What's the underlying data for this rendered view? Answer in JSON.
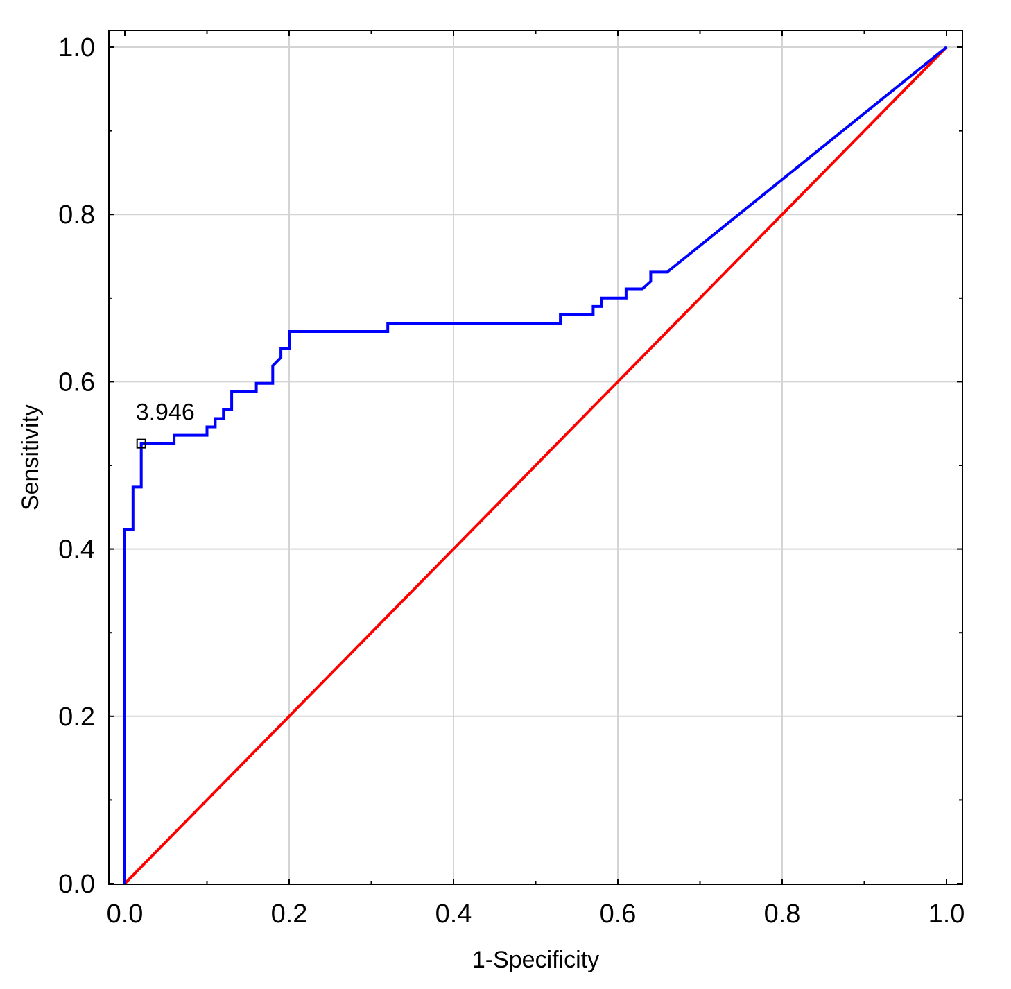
{
  "chart_data": {
    "type": "line",
    "xlabel": "1-Specificity",
    "ylabel": "Sensitivity",
    "xlim": [
      0.0,
      1.0
    ],
    "ylim": [
      0.0,
      1.0
    ],
    "grid": true,
    "x_ticks": [
      "0.0",
      "0.2",
      "0.4",
      "0.6",
      "0.8",
      "1.0"
    ],
    "y_ticks": [
      "0.0",
      "0.2",
      "0.4",
      "0.6",
      "0.8",
      "1.0"
    ],
    "series": [
      {
        "color": "#0000ff",
        "points": [
          [
            0.0,
            0.0
          ],
          [
            0.0,
            0.423
          ],
          [
            0.01,
            0.423
          ],
          [
            0.01,
            0.474
          ],
          [
            0.02,
            0.474
          ],
          [
            0.02,
            0.526
          ],
          [
            0.06,
            0.526
          ],
          [
            0.06,
            0.536
          ],
          [
            0.1,
            0.536
          ],
          [
            0.1,
            0.546
          ],
          [
            0.11,
            0.546
          ],
          [
            0.11,
            0.556
          ],
          [
            0.12,
            0.556
          ],
          [
            0.12,
            0.567
          ],
          [
            0.13,
            0.567
          ],
          [
            0.13,
            0.588
          ],
          [
            0.16,
            0.588
          ],
          [
            0.16,
            0.598
          ],
          [
            0.18,
            0.598
          ],
          [
            0.18,
            0.619
          ],
          [
            0.19,
            0.629
          ],
          [
            0.19,
            0.64
          ],
          [
            0.2,
            0.64
          ],
          [
            0.2,
            0.66
          ],
          [
            0.32,
            0.66
          ],
          [
            0.32,
            0.67
          ],
          [
            0.53,
            0.67
          ],
          [
            0.53,
            0.68
          ],
          [
            0.57,
            0.68
          ],
          [
            0.57,
            0.69
          ],
          [
            0.58,
            0.69
          ],
          [
            0.58,
            0.7
          ],
          [
            0.61,
            0.7
          ],
          [
            0.61,
            0.711
          ],
          [
            0.63,
            0.711
          ],
          [
            0.64,
            0.72
          ],
          [
            0.64,
            0.731
          ],
          [
            0.66,
            0.731
          ],
          [
            1.0,
            1.0
          ]
        ]
      },
      {
        "color": "#ff0000",
        "points": [
          [
            0.0,
            0.0
          ],
          [
            1.0,
            1.0
          ]
        ]
      }
    ],
    "annotations": [
      {
        "text": "3.946",
        "x": 0.02,
        "y": 0.526,
        "marker": "square"
      }
    ]
  }
}
